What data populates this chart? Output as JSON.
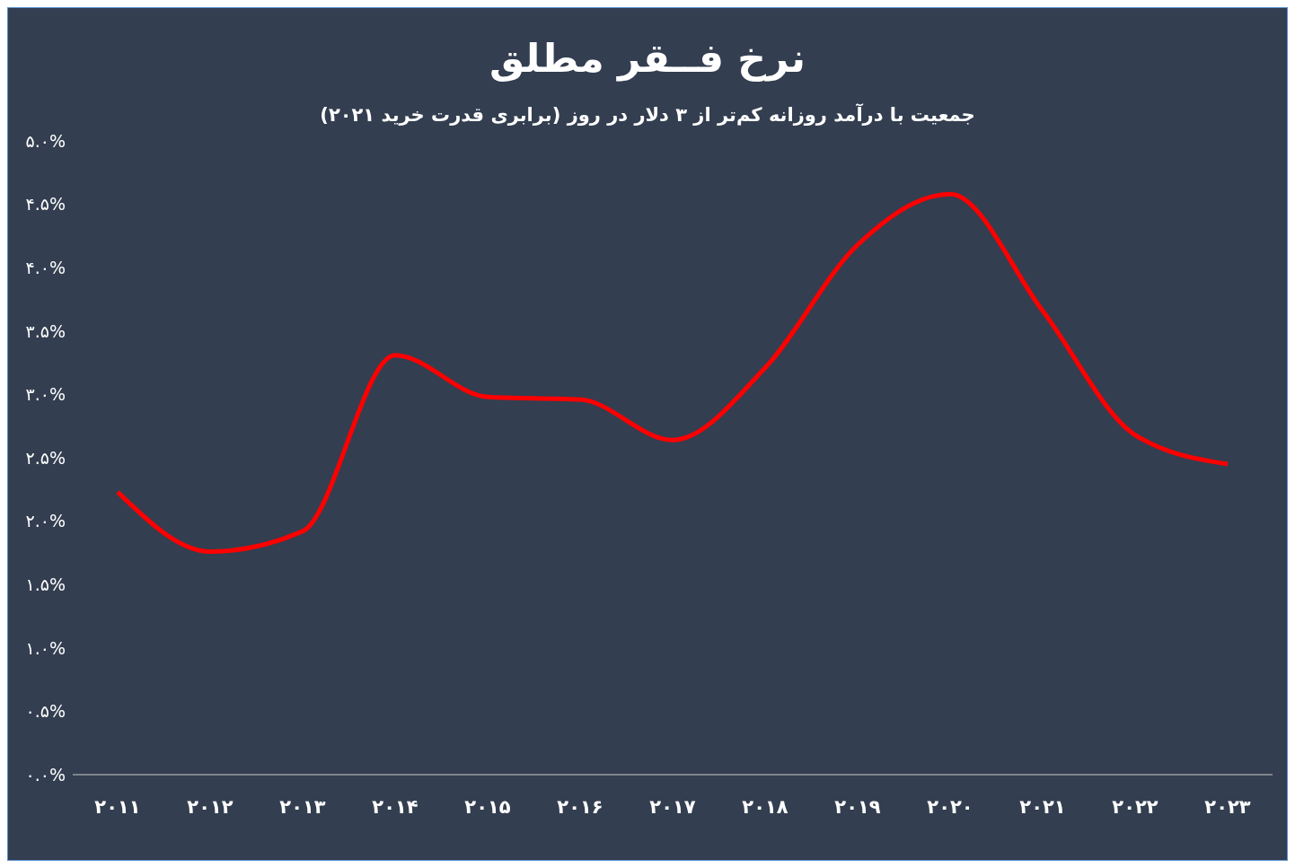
{
  "chart_data": {
    "type": "line",
    "title": "نرخ فــقر مطلق",
    "subtitle": "جمعیت با درآمد روزانه کم‌تر از ۳ دلار در روز (برابری قدرت خرید ۲۰۲۱)",
    "categories": [
      "۲۰۱۱",
      "۲۰۱۲",
      "۲۰۱۳",
      "۲۰۱۴",
      "۲۰۱۵",
      "۲۰۱۶",
      "۲۰۱۷",
      "۲۰۱۸",
      "۲۰۱۹",
      "۲۰۲۰",
      "۲۰۲۱",
      "۲۰۲۲",
      "۲۰۲۳"
    ],
    "series": [
      {
        "color": "#ff0000",
        "values": [
          2.23,
          1.76,
          1.92,
          3.31,
          2.98,
          2.96,
          2.64,
          3.21,
          4.18,
          4.58,
          3.66,
          2.68,
          2.45
        ]
      }
    ],
    "ylim": [
      0,
      5
    ],
    "yticks": [
      {
        "value": 0,
        "label": "۰.۰%"
      },
      {
        "value": 0.5,
        "label": "۰.۵%"
      },
      {
        "value": 1,
        "label": "۱.۰%"
      },
      {
        "value": 1.5,
        "label": "۱.۵%"
      },
      {
        "value": 2,
        "label": "۲.۰%"
      },
      {
        "value": 2.5,
        "label": "۲.۵%"
      },
      {
        "value": 3,
        "label": "۳.۰%"
      },
      {
        "value": 3.5,
        "label": "۳.۵%"
      },
      {
        "value": 4,
        "label": "۴.۰%"
      },
      {
        "value": 4.5,
        "label": "۴.۵%"
      },
      {
        "value": 5,
        "label": "۵.۰%"
      }
    ],
    "grid": false,
    "legend": false,
    "marker": "none",
    "line_style": "solid"
  }
}
